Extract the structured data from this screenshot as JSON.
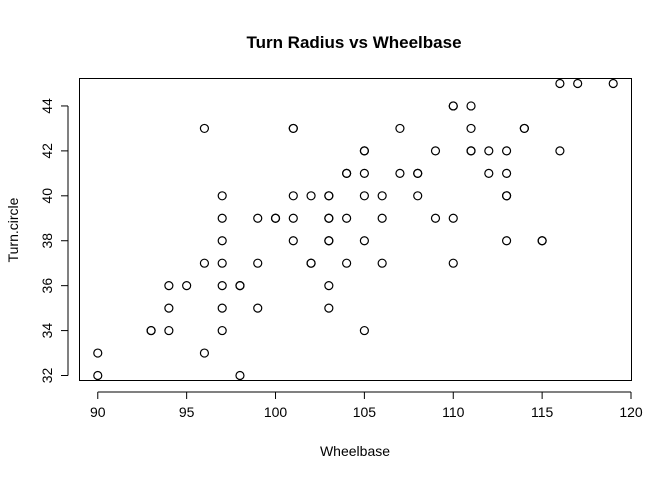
{
  "chart_data": {
    "type": "scatter",
    "title": "Turn Radius vs Wheelbase",
    "xlabel": "Wheelbase",
    "ylabel": "Turn.circle",
    "xlim": [
      89,
      120
    ],
    "ylim": [
      31.8,
      45.2
    ],
    "xticks": [
      90,
      95,
      100,
      105,
      110,
      115,
      120
    ],
    "yticks": [
      32,
      34,
      36,
      38,
      40,
      42,
      44
    ],
    "grid": false,
    "legend": "none",
    "points": [
      {
        "x": 90,
        "y": 33
      },
      {
        "x": 90,
        "y": 32
      },
      {
        "x": 93,
        "y": 34
      },
      {
        "x": 93,
        "y": 34
      },
      {
        "x": 94,
        "y": 36
      },
      {
        "x": 94,
        "y": 35
      },
      {
        "x": 94,
        "y": 34
      },
      {
        "x": 95,
        "y": 36
      },
      {
        "x": 96,
        "y": 43
      },
      {
        "x": 96,
        "y": 37
      },
      {
        "x": 96,
        "y": 33
      },
      {
        "x": 97,
        "y": 40
      },
      {
        "x": 97,
        "y": 39
      },
      {
        "x": 97,
        "y": 38
      },
      {
        "x": 97,
        "y": 37
      },
      {
        "x": 97,
        "y": 36
      },
      {
        "x": 97,
        "y": 35
      },
      {
        "x": 97,
        "y": 34
      },
      {
        "x": 98,
        "y": 36
      },
      {
        "x": 98,
        "y": 36
      },
      {
        "x": 98,
        "y": 32
      },
      {
        "x": 99,
        "y": 39
      },
      {
        "x": 99,
        "y": 37
      },
      {
        "x": 99,
        "y": 35
      },
      {
        "x": 100,
        "y": 39
      },
      {
        "x": 100,
        "y": 39
      },
      {
        "x": 101,
        "y": 43
      },
      {
        "x": 101,
        "y": 43
      },
      {
        "x": 101,
        "y": 40
      },
      {
        "x": 101,
        "y": 39
      },
      {
        "x": 101,
        "y": 38
      },
      {
        "x": 102,
        "y": 40
      },
      {
        "x": 102,
        "y": 37
      },
      {
        "x": 102,
        "y": 37
      },
      {
        "x": 103,
        "y": 40
      },
      {
        "x": 103,
        "y": 40
      },
      {
        "x": 103,
        "y": 39
      },
      {
        "x": 103,
        "y": 39
      },
      {
        "x": 103,
        "y": 38
      },
      {
        "x": 103,
        "y": 38
      },
      {
        "x": 103,
        "y": 36
      },
      {
        "x": 103,
        "y": 35
      },
      {
        "x": 104,
        "y": 41
      },
      {
        "x": 104,
        "y": 41
      },
      {
        "x": 104,
        "y": 39
      },
      {
        "x": 104,
        "y": 37
      },
      {
        "x": 105,
        "y": 42
      },
      {
        "x": 105,
        "y": 42
      },
      {
        "x": 105,
        "y": 41
      },
      {
        "x": 105,
        "y": 40
      },
      {
        "x": 105,
        "y": 38
      },
      {
        "x": 105,
        "y": 34
      },
      {
        "x": 106,
        "y": 40
      },
      {
        "x": 106,
        "y": 39
      },
      {
        "x": 106,
        "y": 37
      },
      {
        "x": 107,
        "y": 43
      },
      {
        "x": 107,
        "y": 41
      },
      {
        "x": 108,
        "y": 41
      },
      {
        "x": 108,
        "y": 41
      },
      {
        "x": 108,
        "y": 40
      },
      {
        "x": 109,
        "y": 42
      },
      {
        "x": 109,
        "y": 39
      },
      {
        "x": 110,
        "y": 44
      },
      {
        "x": 110,
        "y": 44
      },
      {
        "x": 110,
        "y": 39
      },
      {
        "x": 110,
        "y": 37
      },
      {
        "x": 111,
        "y": 44
      },
      {
        "x": 111,
        "y": 43
      },
      {
        "x": 111,
        "y": 42
      },
      {
        "x": 111,
        "y": 42
      },
      {
        "x": 112,
        "y": 42
      },
      {
        "x": 112,
        "y": 41
      },
      {
        "x": 113,
        "y": 42
      },
      {
        "x": 113,
        "y": 41
      },
      {
        "x": 113,
        "y": 40
      },
      {
        "x": 113,
        "y": 40
      },
      {
        "x": 113,
        "y": 38
      },
      {
        "x": 114,
        "y": 43
      },
      {
        "x": 114,
        "y": 43
      },
      {
        "x": 115,
        "y": 38
      },
      {
        "x": 115,
        "y": 38
      },
      {
        "x": 116,
        "y": 45
      },
      {
        "x": 116,
        "y": 42
      },
      {
        "x": 117,
        "y": 45
      },
      {
        "x": 119,
        "y": 45
      }
    ]
  }
}
